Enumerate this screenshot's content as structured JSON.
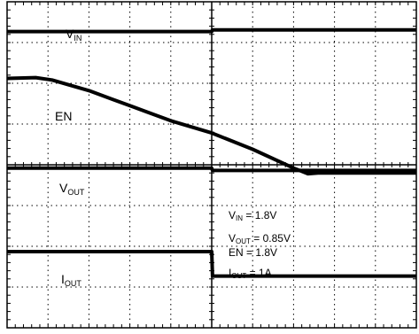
{
  "chart_data": {
    "type": "line",
    "title": "",
    "xlabel": "",
    "ylabel": "",
    "grid": true,
    "divisions": {
      "x": 10,
      "y": 8
    },
    "xlim": [
      0,
      10
    ],
    "ylim": [
      0,
      8
    ],
    "series": [
      {
        "name": "VIN",
        "label_main": "V",
        "label_sub": "IN",
        "x": [
          0,
          5,
          5.02,
          10
        ],
        "values": [
          7.27,
          7.27,
          7.31,
          7.31
        ]
      },
      {
        "name": "EN",
        "label_main": "EN",
        "label_sub": "",
        "x": [
          0,
          0.7,
          1.1,
          2.0,
          3.0,
          4.0,
          5.0,
          6.0,
          7.0,
          7.35,
          7.6,
          10
        ],
        "values": [
          6.12,
          6.14,
          6.08,
          5.82,
          5.45,
          5.08,
          4.78,
          4.38,
          3.92,
          3.78,
          3.8,
          3.8
        ]
      },
      {
        "name": "VOUT",
        "label_main": "V",
        "label_sub": "OUT",
        "x": [
          0,
          5,
          5.02,
          10
        ],
        "values": [
          3.92,
          3.92,
          3.86,
          3.86
        ]
      },
      {
        "name": "IOUT",
        "label_main": "I",
        "label_sub": "OUT",
        "x": [
          0,
          5,
          5.02,
          10
        ],
        "values": [
          1.87,
          1.87,
          1.27,
          1.27
        ]
      }
    ],
    "annotations": [
      {
        "main": "V",
        "sub": "IN",
        "rest": " = 1.8V"
      },
      {
        "main": "V",
        "sub": "OUT",
        "rest": " = 0.85V"
      },
      {
        "main": "EN",
        "sub": "",
        "rest": " = 1.8V"
      },
      {
        "main": "I",
        "sub": "OUT",
        "rest": " = 1A"
      }
    ]
  }
}
